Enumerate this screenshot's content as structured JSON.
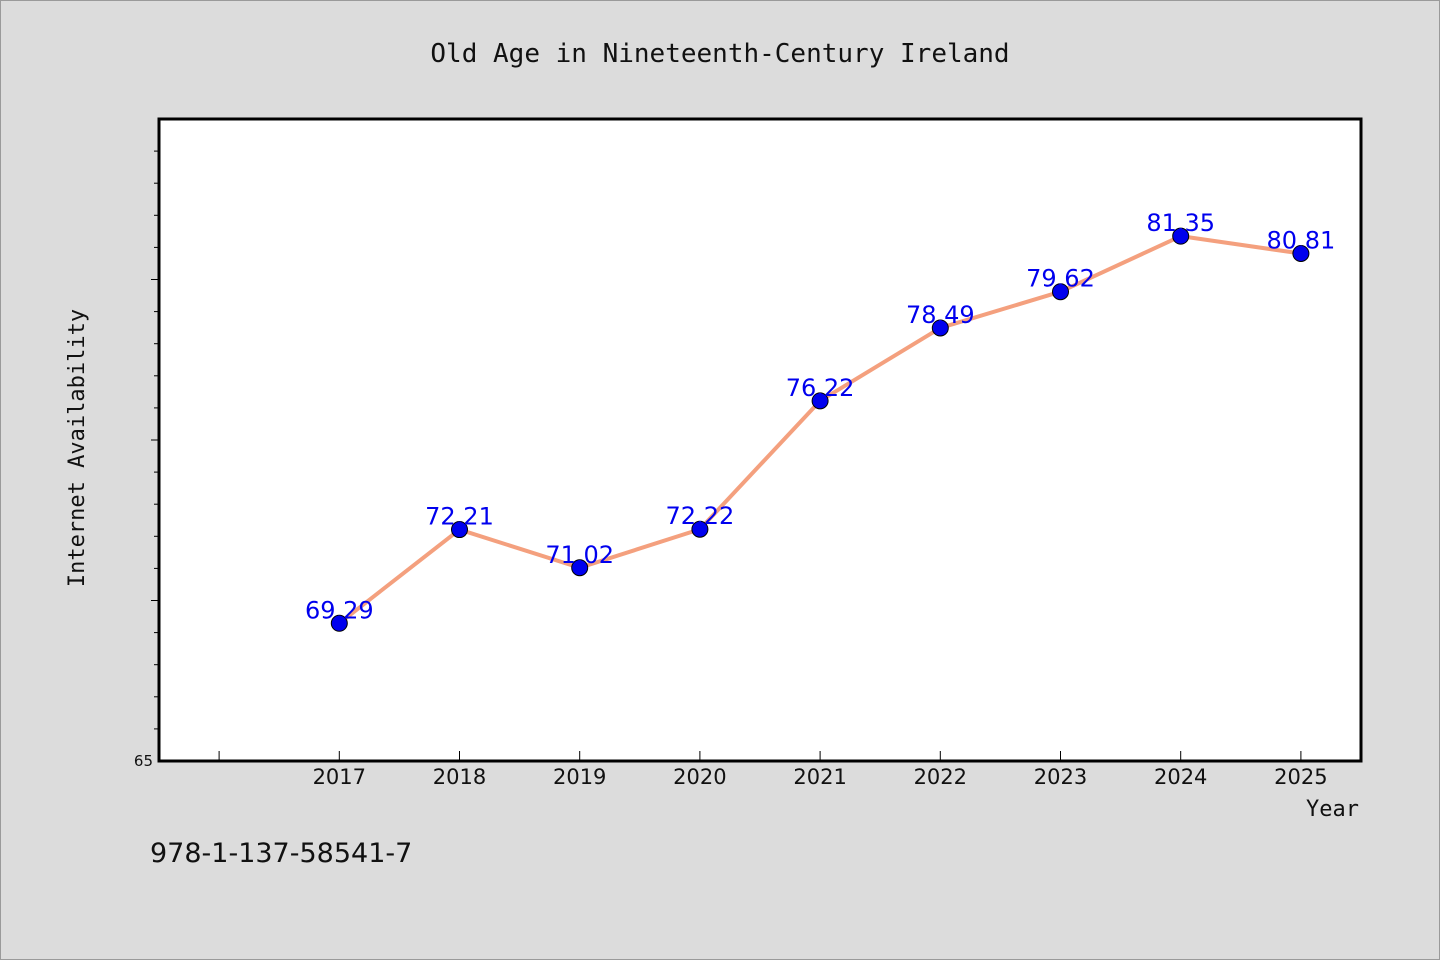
{
  "chart_data": {
    "type": "line",
    "title": "Old Age in Nineteenth-Century Ireland",
    "xlabel": "Year",
    "ylabel": "Internet Availability",
    "categories": [
      "2017",
      "2018",
      "2019",
      "2020",
      "2021",
      "2022",
      "2023",
      "2024",
      "2025"
    ],
    "series": [
      {
        "values": [
          69.29,
          72.21,
          71.02,
          72.22,
          76.22,
          78.49,
          79.62,
          81.35,
          80.81
        ],
        "data_labels": [
          "69.29",
          "72.21",
          "71.02",
          "72.22",
          "76.22",
          "78.49",
          "79.62",
          "81.35",
          "80.81"
        ]
      }
    ],
    "x_range": [
      2015.5,
      2025.5
    ],
    "ylim": [
      65,
      85
    ],
    "y_tick_labels": [
      "65"
    ],
    "y_minor_tick_step": 1,
    "y_major_tick_step": 5,
    "grid": false,
    "legend": "none",
    "line_color": "#f4a07e",
    "marker_color": "#0000ee",
    "label_color": "#0000ee",
    "background": "#dcdcdc",
    "plot_background": "#ffffff"
  },
  "footer": {
    "isbn": "978-1-137-58541-7"
  }
}
